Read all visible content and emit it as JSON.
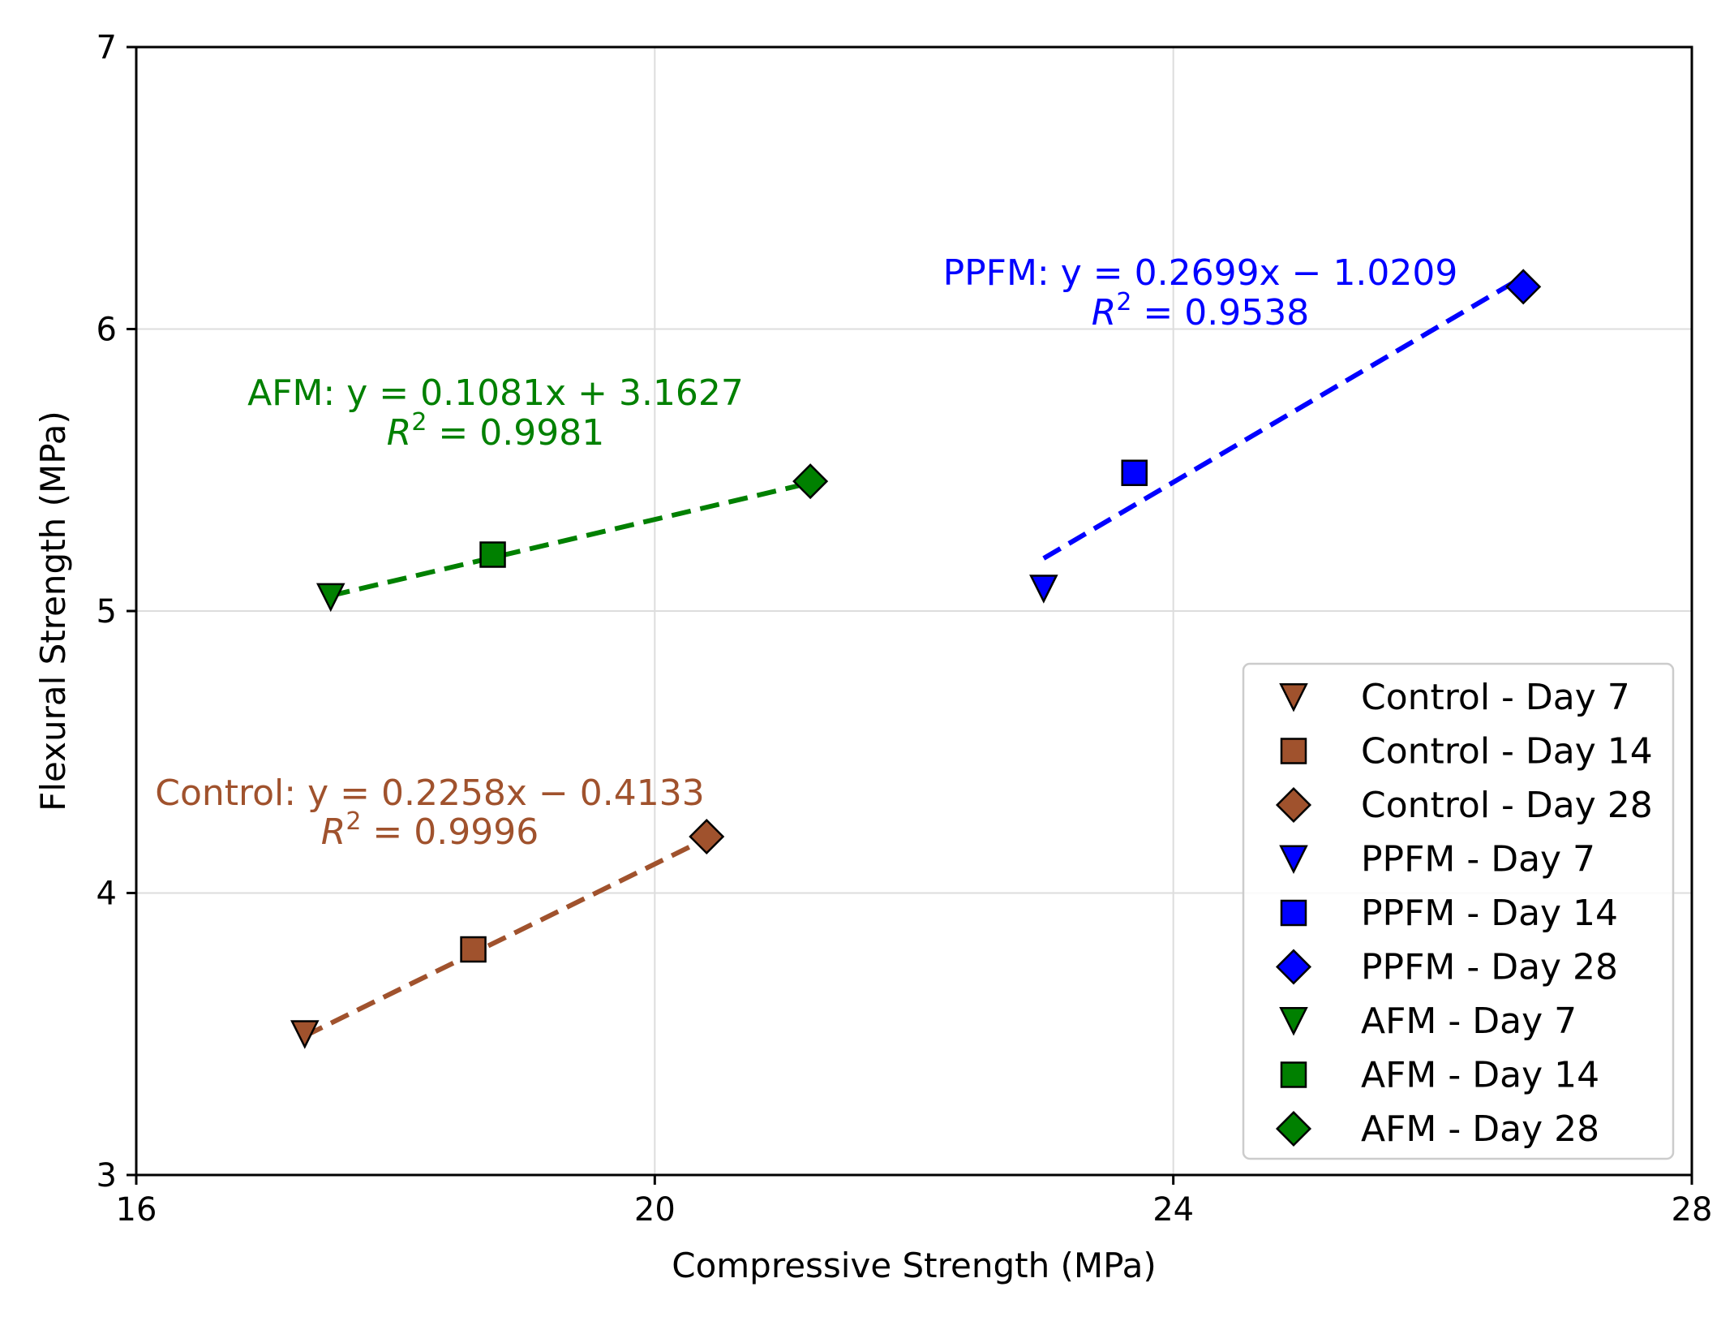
{
  "chart_data": {
    "type": "scatter",
    "title": "",
    "xlabel": "Compressive Strength (MPa)",
    "ylabel": "Flexural Strength (MPa)",
    "xlim": [
      16,
      28
    ],
    "ylim": [
      3,
      7
    ],
    "xticks": [
      16,
      20,
      24,
      28
    ],
    "yticks": [
      3,
      4,
      5,
      6,
      7
    ],
    "grid": true,
    "legend_position": "bottom-right",
    "groups": [
      {
        "name": "Control",
        "color": "#A0522D",
        "points": [
          {
            "label": "Control - Day 7",
            "marker": "triangle-down",
            "x": 17.3,
            "y": 3.5
          },
          {
            "label": "Control - Day 14",
            "marker": "square",
            "x": 18.6,
            "y": 3.8
          },
          {
            "label": "Control - Day 28",
            "marker": "diamond",
            "x": 20.4,
            "y": 4.2
          }
        ],
        "fit": {
          "slope": 0.2258,
          "intercept": -0.4133,
          "x_range": [
            17.3,
            20.4
          ]
        },
        "equation": "Control: y = 0.2258x − 0.4133",
        "r2_prefix": "R",
        "r2_suffix": " = 0.9996"
      },
      {
        "name": "PPFM",
        "color": "#0000FF",
        "points": [
          {
            "label": "PPFM - Day 7",
            "marker": "triangle-down",
            "x": 23.0,
            "y": 5.08
          },
          {
            "label": "PPFM - Day 14",
            "marker": "square",
            "x": 23.7,
            "y": 5.49
          },
          {
            "label": "PPFM - Day 28",
            "marker": "diamond",
            "x": 26.7,
            "y": 6.15
          }
        ],
        "fit": {
          "slope": 0.2699,
          "intercept": -1.0209,
          "x_range": [
            23.0,
            26.7
          ]
        },
        "equation": "PPFM: y = 0.2699x − 1.0209",
        "r2_prefix": "R",
        "r2_suffix": " = 0.9538"
      },
      {
        "name": "AFM",
        "color": "#008000",
        "points": [
          {
            "label": "AFM - Day 7",
            "marker": "triangle-down",
            "x": 17.5,
            "y": 5.05
          },
          {
            "label": "AFM - Day 14",
            "marker": "square",
            "x": 18.75,
            "y": 5.2
          },
          {
            "label": "AFM - Day 28",
            "marker": "diamond",
            "x": 21.2,
            "y": 5.46
          }
        ],
        "fit": {
          "slope": 0.1081,
          "intercept": 3.1627,
          "x_range": [
            17.5,
            21.2
          ]
        },
        "equation": "AFM: y = 0.1081x + 3.1627",
        "r2_prefix": "R",
        "r2_suffix": " = 0.9981"
      }
    ]
  }
}
